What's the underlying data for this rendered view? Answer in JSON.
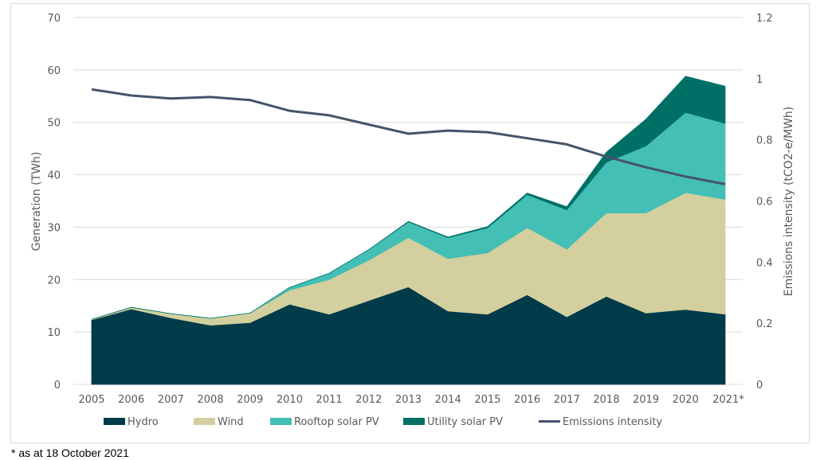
{
  "chart_data": {
    "type": "area",
    "title": "",
    "x": [
      "2005",
      "2006",
      "2007",
      "2008",
      "2009",
      "2010",
      "2011",
      "2012",
      "2013",
      "2014",
      "2015",
      "2016",
      "2017",
      "2018",
      "2019",
      "2020",
      "2021*"
    ],
    "ylabel": "Generation (TWh)",
    "y2label": "Emissions intensity (tCO2-e/MWh)",
    "ylim": [
      0,
      70
    ],
    "y2lim": [
      0,
      1.2
    ],
    "yticks": [
      "0",
      "10",
      "20",
      "30",
      "40",
      "50",
      "60",
      "70"
    ],
    "y2ticks": [
      "0",
      "0.2",
      "0.4",
      "0.6",
      "0.8",
      "1",
      "1.2"
    ],
    "grid": true,
    "stacked": true,
    "legend_position": "bottom",
    "series": [
      {
        "name": "Hydro",
        "type": "area",
        "axis": "left",
        "color": "#003B4A",
        "values": [
          12.3,
          14.4,
          12.7,
          11.3,
          11.8,
          15.3,
          13.4,
          16.0,
          18.6,
          14.0,
          13.4,
          17.1,
          12.9,
          16.8,
          13.6,
          14.3,
          13.4
        ]
      },
      {
        "name": "Wind",
        "type": "area",
        "axis": "left",
        "color": "#D3CF9E",
        "values": [
          0.1,
          0.3,
          0.8,
          1.3,
          1.8,
          2.7,
          6.6,
          7.7,
          9.4,
          10.0,
          11.7,
          12.8,
          12.9,
          15.9,
          19.1,
          22.3,
          21.9
        ]
      },
      {
        "name": "Rooftop solar PV",
        "type": "area",
        "axis": "left",
        "color": "#43BFB5",
        "values": [
          0,
          0,
          0,
          0,
          0,
          0.5,
          1.2,
          2.0,
          3.0,
          4.0,
          4.8,
          6.3,
          7.5,
          9.7,
          12.8,
          15.3,
          14.5
        ]
      },
      {
        "name": "Utility solar PV",
        "type": "area",
        "axis": "left",
        "color": "#007066",
        "values": [
          0,
          0,
          0,
          0,
          0,
          0,
          0,
          0,
          0.1,
          0.1,
          0.2,
          0.3,
          0.6,
          1.9,
          5.1,
          6.9,
          7.1
        ]
      },
      {
        "name": "Emissions intensity",
        "type": "line",
        "axis": "right",
        "color": "#44546A",
        "values": [
          0.965,
          0.945,
          0.935,
          0.94,
          0.93,
          0.895,
          0.88,
          0.85,
          0.82,
          0.83,
          0.825,
          0.805,
          0.785,
          0.745,
          0.71,
          0.68,
          0.655
        ]
      }
    ]
  },
  "footnote": "* as at 18 October 2021"
}
